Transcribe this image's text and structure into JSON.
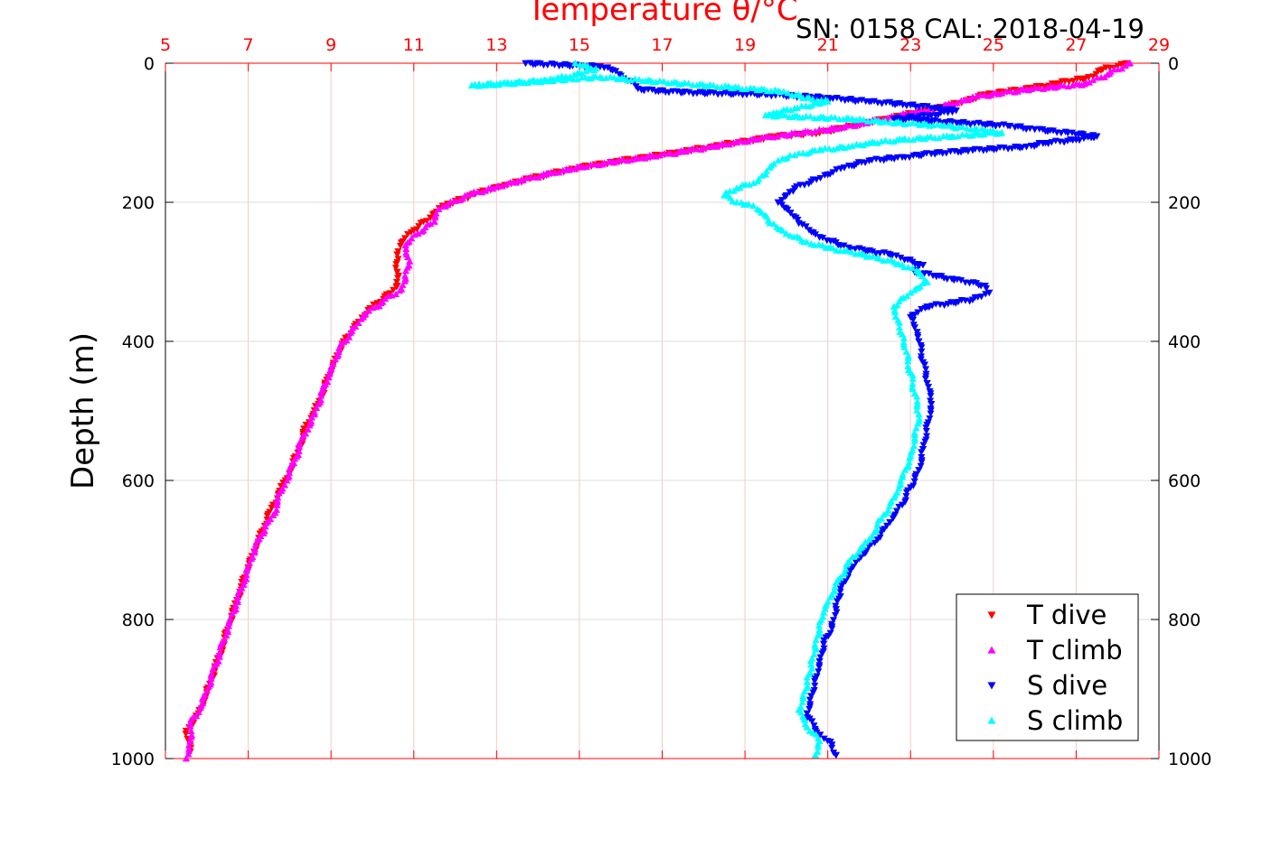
{
  "chart_data": {
    "type": "scatter",
    "title": "Temperature θ/°C",
    "subtitle": "SN: 0158  CAL: 2018-04-19",
    "ylabel": "Depth (m)",
    "x_top": {
      "ticks": [
        5,
        7,
        9,
        11,
        13,
        15,
        17,
        19,
        21,
        23,
        25,
        27,
        29
      ],
      "range": [
        5,
        29
      ],
      "color": "#ff0000"
    },
    "y": {
      "ticks": [
        0,
        200,
        400,
        600,
        800,
        1000
      ],
      "range": [
        0,
        1000
      ],
      "reversed": true
    },
    "grid": true,
    "legend_position": "bottom-right",
    "series": [
      {
        "name": "T dive",
        "color": "#ff0000",
        "marker": "triangle-down",
        "points": [
          [
            28.2,
            0
          ],
          [
            27.6,
            10
          ],
          [
            27.3,
            20
          ],
          [
            26.0,
            35
          ],
          [
            24.8,
            45
          ],
          [
            24.0,
            60
          ],
          [
            23.2,
            70
          ],
          [
            22.4,
            80
          ],
          [
            21.6,
            90
          ],
          [
            20.8,
            100
          ],
          [
            19.8,
            105
          ],
          [
            19.0,
            112
          ],
          [
            18.2,
            120
          ],
          [
            17.4,
            128
          ],
          [
            16.6,
            135
          ],
          [
            15.8,
            142
          ],
          [
            15.0,
            150
          ],
          [
            14.4,
            158
          ],
          [
            13.8,
            166
          ],
          [
            13.2,
            175
          ],
          [
            12.6,
            185
          ],
          [
            12.2,
            195
          ],
          [
            11.7,
            205
          ],
          [
            11.4,
            222
          ],
          [
            11.0,
            240
          ],
          [
            10.7,
            258
          ],
          [
            10.6,
            275
          ],
          [
            10.6,
            300
          ],
          [
            10.6,
            320
          ],
          [
            10.3,
            335
          ],
          [
            9.9,
            355
          ],
          [
            9.6,
            375
          ],
          [
            9.3,
            400
          ],
          [
            9.1,
            425
          ],
          [
            8.9,
            455
          ],
          [
            8.7,
            490
          ],
          [
            8.4,
            520
          ],
          [
            8.2,
            560
          ],
          [
            7.9,
            600
          ],
          [
            7.6,
            635
          ],
          [
            7.4,
            665
          ],
          [
            7.2,
            695
          ],
          [
            7.0,
            725
          ],
          [
            6.8,
            760
          ],
          [
            6.6,
            795
          ],
          [
            6.4,
            835
          ],
          [
            6.2,
            870
          ],
          [
            6.0,
            905
          ],
          [
            5.8,
            935
          ],
          [
            5.5,
            960
          ],
          [
            5.6,
            990
          ]
        ]
      },
      {
        "name": "T climb",
        "color": "#ff00ff",
        "marker": "triangle-up",
        "points": [
          [
            28.3,
            0
          ],
          [
            27.8,
            15
          ],
          [
            27.2,
            30
          ],
          [
            25.8,
            38
          ],
          [
            24.6,
            48
          ],
          [
            23.8,
            62
          ],
          [
            23.0,
            72
          ],
          [
            22.2,
            82
          ],
          [
            21.4,
            92
          ],
          [
            20.4,
            100
          ],
          [
            19.6,
            106
          ],
          [
            18.8,
            114
          ],
          [
            18.0,
            122
          ],
          [
            17.2,
            130
          ],
          [
            16.4,
            137
          ],
          [
            15.6,
            144
          ],
          [
            14.8,
            152
          ],
          [
            14.2,
            160
          ],
          [
            13.6,
            168
          ],
          [
            13.0,
            178
          ],
          [
            12.4,
            188
          ],
          [
            12.0,
            198
          ],
          [
            11.6,
            210
          ],
          [
            11.5,
            228
          ],
          [
            11.1,
            245
          ],
          [
            10.8,
            262
          ],
          [
            10.9,
            285
          ],
          [
            10.8,
            310
          ],
          [
            10.7,
            325
          ],
          [
            10.2,
            345
          ],
          [
            9.8,
            362
          ],
          [
            9.5,
            385
          ],
          [
            9.2,
            410
          ],
          [
            9.0,
            440
          ],
          [
            8.8,
            470
          ],
          [
            8.6,
            505
          ],
          [
            8.3,
            540
          ],
          [
            8.1,
            575
          ],
          [
            7.8,
            615
          ],
          [
            7.6,
            650
          ],
          [
            7.3,
            680
          ],
          [
            7.1,
            710
          ],
          [
            6.9,
            745
          ],
          [
            6.7,
            780
          ],
          [
            6.5,
            815
          ],
          [
            6.3,
            850
          ],
          [
            6.1,
            885
          ],
          [
            5.9,
            920
          ],
          [
            5.6,
            950
          ],
          [
            5.6,
            975
          ],
          [
            5.5,
            1000
          ]
        ]
      },
      {
        "name": "S dive",
        "color": "#0000ff",
        "marker": "triangle-down",
        "points": [
          [
            13.7,
            0
          ],
          [
            14.4,
            2
          ],
          [
            15.5,
            5
          ],
          [
            15.8,
            10
          ],
          [
            16.0,
            18
          ],
          [
            16.5,
            38
          ],
          [
            17.5,
            42
          ],
          [
            19.5,
            45
          ],
          [
            21.0,
            50
          ],
          [
            22.0,
            55
          ],
          [
            23.0,
            60
          ],
          [
            24.1,
            68
          ],
          [
            23.5,
            75
          ],
          [
            22.6,
            80
          ],
          [
            24.0,
            85
          ],
          [
            25.4,
            90
          ],
          [
            26.0,
            95
          ],
          [
            26.8,
            100
          ],
          [
            27.5,
            105
          ],
          [
            27.0,
            110
          ],
          [
            26.2,
            115
          ],
          [
            25.8,
            120
          ],
          [
            24.5,
            125
          ],
          [
            23.5,
            130
          ],
          [
            22.8,
            135
          ],
          [
            22.0,
            140
          ],
          [
            21.4,
            150
          ],
          [
            21.0,
            160
          ],
          [
            20.6,
            170
          ],
          [
            20.2,
            180
          ],
          [
            20.0,
            190
          ],
          [
            19.8,
            200
          ],
          [
            20.1,
            215
          ],
          [
            20.3,
            230
          ],
          [
            20.8,
            250
          ],
          [
            21.5,
            265
          ],
          [
            22.5,
            275
          ],
          [
            23.3,
            290
          ],
          [
            23.1,
            300
          ],
          [
            24.0,
            310
          ],
          [
            24.8,
            320
          ],
          [
            24.9,
            330
          ],
          [
            24.5,
            340
          ],
          [
            23.4,
            350
          ],
          [
            23.0,
            365
          ],
          [
            23.1,
            380
          ],
          [
            23.2,
            400
          ],
          [
            23.3,
            430
          ],
          [
            23.4,
            460
          ],
          [
            23.5,
            490
          ],
          [
            23.4,
            520
          ],
          [
            23.3,
            555
          ],
          [
            23.2,
            585
          ],
          [
            23.0,
            610
          ],
          [
            22.8,
            635
          ],
          [
            22.5,
            660
          ],
          [
            22.2,
            685
          ],
          [
            21.8,
            710
          ],
          [
            21.5,
            735
          ],
          [
            21.3,
            760
          ],
          [
            21.2,
            785
          ],
          [
            21.1,
            810
          ],
          [
            20.9,
            835
          ],
          [
            20.8,
            860
          ],
          [
            20.7,
            885
          ],
          [
            20.6,
            910
          ],
          [
            20.5,
            935
          ],
          [
            20.7,
            960
          ],
          [
            21.1,
            980
          ],
          [
            21.2,
            995
          ]
        ]
      },
      {
        "name": "S climb",
        "color": "#00ffff",
        "marker": "triangle-up",
        "points": [
          [
            14.9,
            0
          ],
          [
            15.4,
            8
          ],
          [
            15.0,
            15
          ],
          [
            14.2,
            25
          ],
          [
            13.0,
            30
          ],
          [
            12.4,
            32
          ],
          [
            13.5,
            28
          ],
          [
            15.5,
            20
          ],
          [
            19.8,
            40
          ],
          [
            20.5,
            50
          ],
          [
            21.0,
            55
          ],
          [
            20.2,
            65
          ],
          [
            19.5,
            75
          ],
          [
            21.5,
            80
          ],
          [
            22.5,
            85
          ],
          [
            23.8,
            90
          ],
          [
            24.6,
            95
          ],
          [
            25.2,
            100
          ],
          [
            24.0,
            105
          ],
          [
            22.8,
            110
          ],
          [
            22.0,
            115
          ],
          [
            21.5,
            120
          ],
          [
            20.8,
            125
          ],
          [
            20.2,
            132
          ],
          [
            19.8,
            140
          ],
          [
            19.6,
            150
          ],
          [
            19.5,
            160
          ],
          [
            19.3,
            170
          ],
          [
            18.8,
            180
          ],
          [
            18.5,
            190
          ],
          [
            18.8,
            200
          ],
          [
            19.2,
            205
          ],
          [
            19.4,
            215
          ],
          [
            19.6,
            230
          ],
          [
            20.0,
            245
          ],
          [
            20.6,
            260
          ],
          [
            21.4,
            270
          ],
          [
            22.2,
            280
          ],
          [
            22.8,
            290
          ],
          [
            23.2,
            300
          ],
          [
            23.4,
            315
          ],
          [
            23.0,
            330
          ],
          [
            22.6,
            350
          ],
          [
            22.7,
            370
          ],
          [
            22.8,
            390
          ],
          [
            22.9,
            415
          ],
          [
            23.0,
            445
          ],
          [
            23.1,
            475
          ],
          [
            23.2,
            505
          ],
          [
            23.1,
            535
          ],
          [
            23.0,
            565
          ],
          [
            22.8,
            595
          ],
          [
            22.6,
            625
          ],
          [
            22.3,
            655
          ],
          [
            22.0,
            685
          ],
          [
            21.6,
            710
          ],
          [
            21.3,
            740
          ],
          [
            21.1,
            765
          ],
          [
            20.9,
            790
          ],
          [
            20.8,
            815
          ],
          [
            20.7,
            840
          ],
          [
            20.6,
            865
          ],
          [
            20.5,
            890
          ],
          [
            20.4,
            910
          ],
          [
            20.3,
            930
          ],
          [
            20.5,
            955
          ],
          [
            20.8,
            975
          ],
          [
            20.7,
            995
          ]
        ]
      }
    ],
    "legend": [
      "T dive",
      "T climb",
      "S dive",
      "S climb"
    ]
  }
}
